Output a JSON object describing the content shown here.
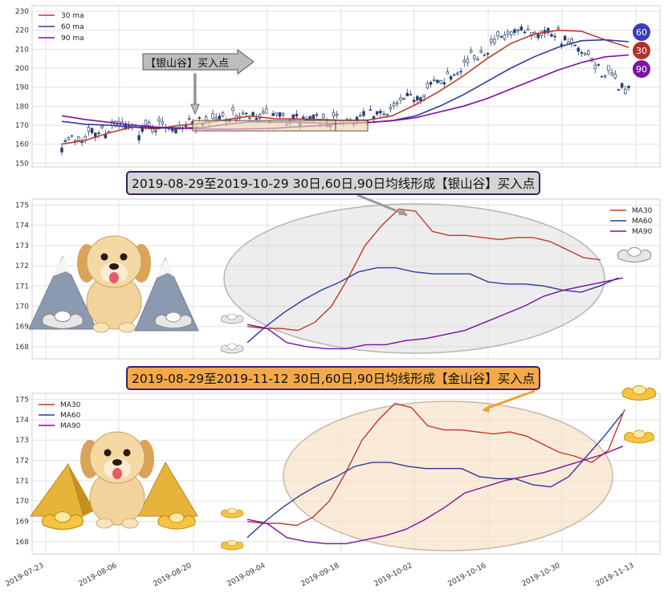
{
  "chart_data": [
    {
      "id": "top",
      "type": "candlestick",
      "ylim": [
        148,
        233
      ],
      "yticks": [
        150,
        160,
        170,
        180,
        190,
        200,
        210,
        220,
        230
      ],
      "legend": {
        "placement": "top-left",
        "entries": [
          "30 ma",
          "60 ma",
          "90 ma"
        ]
      },
      "colors": {
        "ma30": "#c0392b",
        "ma60": "#2e3a9e",
        "ma90": "#7d0ea3",
        "candle": "#2b3f6b"
      },
      "annotation_label": "【银山谷】买入点",
      "badges": [
        "60",
        "30",
        "90"
      ],
      "ma30": [
        160,
        162,
        166,
        169,
        168,
        170,
        171,
        173,
        174.8,
        173.4,
        173.3,
        173.0,
        172.5,
        172.8,
        175,
        181,
        188,
        196,
        205,
        213,
        218,
        220,
        219.5,
        215,
        211
      ],
      "ma60": [
        172,
        170.5,
        170,
        169,
        168.5,
        168.5,
        168.8,
        170.5,
        171.8,
        171.6,
        171.5,
        171.1,
        171.0,
        171.4,
        172.5,
        175,
        180,
        186,
        193,
        200,
        206,
        211,
        214.5,
        215,
        214
      ],
      "ma90": [
        175,
        173,
        171.5,
        170,
        169,
        168.5,
        168,
        167.9,
        168.1,
        168.4,
        169.2,
        169.8,
        171.0,
        171.5,
        172.3,
        174,
        177,
        180,
        184,
        189,
        194,
        199,
        203,
        206,
        207
      ]
    },
    {
      "id": "silver",
      "type": "line",
      "title": "2019-08-29至2019-10-29 30日,60日,90日均线形成【银山谷】买入点",
      "ylim": [
        167.4,
        175.3
      ],
      "yticks": [
        168,
        169,
        170,
        171,
        172,
        173,
        174,
        175
      ],
      "legend": {
        "placement": "top-right"
      },
      "series": [
        {
          "name": "MA30",
          "color": "#c0392b",
          "values": [
            169.0,
            168.9,
            168.9,
            168.8,
            169.2,
            170.0,
            171.4,
            173.0,
            174.0,
            174.8,
            174.7,
            173.7,
            173.5,
            173.5,
            173.4,
            173.3,
            173.4,
            173.4,
            173.2,
            172.8,
            172.4,
            172.3
          ]
        },
        {
          "name": "MA60",
          "color": "#2e3a9e",
          "values": [
            168.2,
            169.0,
            169.7,
            170.3,
            170.8,
            171.2,
            171.7,
            171.9,
            171.9,
            171.7,
            171.6,
            171.6,
            171.6,
            171.2,
            171.1,
            171.1,
            171.0,
            170.8,
            170.7,
            171.0,
            171.4
          ]
        },
        {
          "name": "MA90",
          "color": "#7d0ea3",
          "values": [
            169.1,
            168.9,
            168.2,
            168.0,
            167.9,
            167.9,
            168.1,
            168.1,
            168.3,
            168.4,
            168.6,
            168.8,
            169.2,
            169.6,
            170.0,
            170.5,
            170.8,
            171.0,
            171.2,
            171.4
          ]
        }
      ]
    },
    {
      "id": "gold",
      "type": "line",
      "title": "2019-08-29至2019-11-12 30日,60日,90日均线形成【金山谷】买入点",
      "ylim": [
        167.4,
        175.3
      ],
      "yticks": [
        168,
        169,
        170,
        171,
        172,
        173,
        174,
        175
      ],
      "legend": {
        "placement": "top-left"
      },
      "xticks": [
        "2019-07-23",
        "2019-08-06",
        "2019-08-20",
        "2019-09-04",
        "2019-09-18",
        "2019-10-02",
        "2019-10-16",
        "2019-10-30",
        "2019-11-13"
      ],
      "series": [
        {
          "name": "MA30",
          "color": "#c0392b",
          "values": [
            169.0,
            168.9,
            168.9,
            168.8,
            169.2,
            170.0,
            171.4,
            173.0,
            174.0,
            174.8,
            174.6,
            173.7,
            173.5,
            173.5,
            173.4,
            173.3,
            173.4,
            173.2,
            172.8,
            172.4,
            172.2,
            171.9,
            172.5,
            174.5
          ]
        },
        {
          "name": "MA60",
          "color": "#2e3a9e",
          "values": [
            168.2,
            169.0,
            169.7,
            170.3,
            170.8,
            171.2,
            171.7,
            171.9,
            171.9,
            171.7,
            171.6,
            171.6,
            171.6,
            171.2,
            171.1,
            171.1,
            170.8,
            170.7,
            171.2,
            172.2,
            173.2,
            174.3
          ]
        },
        {
          "name": "MA90",
          "color": "#7d0ea3",
          "values": [
            169.1,
            168.9,
            168.2,
            168.0,
            167.9,
            167.9,
            168.1,
            168.3,
            168.6,
            169.1,
            169.7,
            170.4,
            170.7,
            171.0,
            171.2,
            171.4,
            171.7,
            172.0,
            172.3,
            172.7
          ]
        }
      ]
    }
  ]
}
